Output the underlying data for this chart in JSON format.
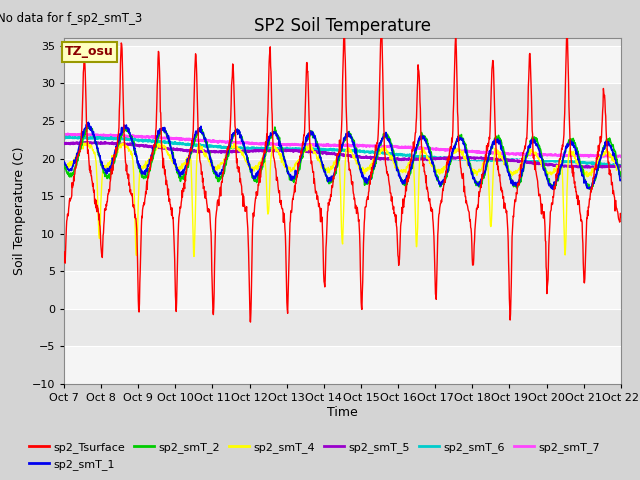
{
  "title": "SP2 Soil Temperature",
  "no_data_text": "No data for f_sp2_smT_3",
  "ylabel": "Soil Temperature (C)",
  "xlabel": "Time",
  "tz_label": "TZ_osu",
  "ylim": [
    -10,
    36
  ],
  "yticks": [
    -10,
    -5,
    0,
    5,
    10,
    15,
    20,
    25,
    30,
    35
  ],
  "x_labels": [
    "Oct 7",
    "Oct 8",
    "Oct 9",
    "Oct 10",
    "Oct 11",
    "Oct 12",
    "Oct 13",
    "Oct 14",
    "Oct 15",
    "Oct 16",
    "Oct 17",
    "Oct 18",
    "Oct 19",
    "Oct 20",
    "Oct 21",
    "Oct 22"
  ],
  "background_color": "#d4d4d4",
  "plot_bg_color": "#e8e8e8",
  "grid_band_color": "#f5f5f5",
  "colors": {
    "sp2_Tsurface": "#ff0000",
    "sp2_smT_1": "#0000ee",
    "sp2_smT_2": "#00cc00",
    "sp2_smT_4": "#ffff00",
    "sp2_smT_5": "#9900cc",
    "sp2_smT_6": "#00cccc",
    "sp2_smT_7": "#ff44ff"
  },
  "figsize": [
    6.4,
    4.8
  ],
  "dpi": 100
}
